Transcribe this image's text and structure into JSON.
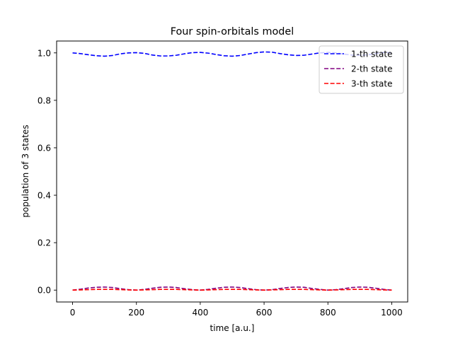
{
  "chart_data": {
    "type": "line",
    "title": "Four spin-orbitals model",
    "xlabel": "time [a.u.]",
    "ylabel": "population of 3 states",
    "xlim": [
      -50,
      1050
    ],
    "ylim": [
      -0.05,
      1.05
    ],
    "xticks": [
      0,
      200,
      400,
      600,
      800,
      1000
    ],
    "xtick_labels": [
      "0",
      "200",
      "400",
      "600",
      "800",
      "1000"
    ],
    "yticks": [
      0.0,
      0.2,
      0.4,
      0.6,
      0.8,
      1.0
    ],
    "ytick_labels": [
      "0.0",
      "0.2",
      "0.4",
      "0.6",
      "0.8",
      "1.0"
    ],
    "grid": false,
    "legend_position": "top-right",
    "x": [
      0,
      25,
      50,
      75,
      100,
      125,
      150,
      175,
      200,
      225,
      250,
      275,
      300,
      325,
      350,
      375,
      400,
      425,
      450,
      475,
      500,
      525,
      550,
      575,
      600,
      625,
      650,
      675,
      700,
      725,
      750,
      775,
      800,
      825,
      850,
      875,
      900,
      925,
      950,
      975,
      1000
    ],
    "series": [
      {
        "name": "1-th state",
        "color": "#0000ff",
        "values": [
          1.0,
          0.997,
          0.992,
          0.988,
          0.986,
          0.989,
          0.996,
          1.0,
          1.001,
          0.998,
          0.991,
          0.987,
          0.987,
          0.99,
          0.996,
          1.001,
          1.002,
          0.999,
          0.993,
          0.988,
          0.986,
          0.989,
          0.995,
          1.001,
          1.004,
          1.003,
          0.997,
          0.992,
          0.989,
          0.99,
          0.995,
          1.0,
          1.002,
          1.0,
          0.995,
          0.991,
          0.99,
          0.992,
          0.997,
          1.002,
          1.0
        ]
      },
      {
        "name": "2-th state",
        "color": "#800080",
        "values": [
          0.0,
          0.004,
          0.009,
          0.012,
          0.013,
          0.011,
          0.006,
          0.002,
          0.0,
          0.003,
          0.008,
          0.012,
          0.013,
          0.011,
          0.006,
          0.002,
          0.0,
          0.003,
          0.008,
          0.012,
          0.013,
          0.011,
          0.006,
          0.002,
          0.0,
          0.002,
          0.007,
          0.011,
          0.013,
          0.012,
          0.007,
          0.003,
          0.0,
          0.002,
          0.006,
          0.011,
          0.013,
          0.012,
          0.008,
          0.003,
          0.0
        ]
      },
      {
        "name": "3-th state",
        "color": "#ff0000",
        "values": [
          0.0,
          0.001,
          0.002,
          0.003,
          0.003,
          0.003,
          0.002,
          0.001,
          0.0,
          0.001,
          0.002,
          0.003,
          0.003,
          0.003,
          0.002,
          0.001,
          0.0,
          0.001,
          0.002,
          0.003,
          0.003,
          0.003,
          0.002,
          0.001,
          0.0,
          0.001,
          0.002,
          0.003,
          0.003,
          0.003,
          0.002,
          0.001,
          0.0,
          0.001,
          0.002,
          0.003,
          0.003,
          0.003,
          0.002,
          0.001,
          0.0
        ]
      }
    ]
  }
}
